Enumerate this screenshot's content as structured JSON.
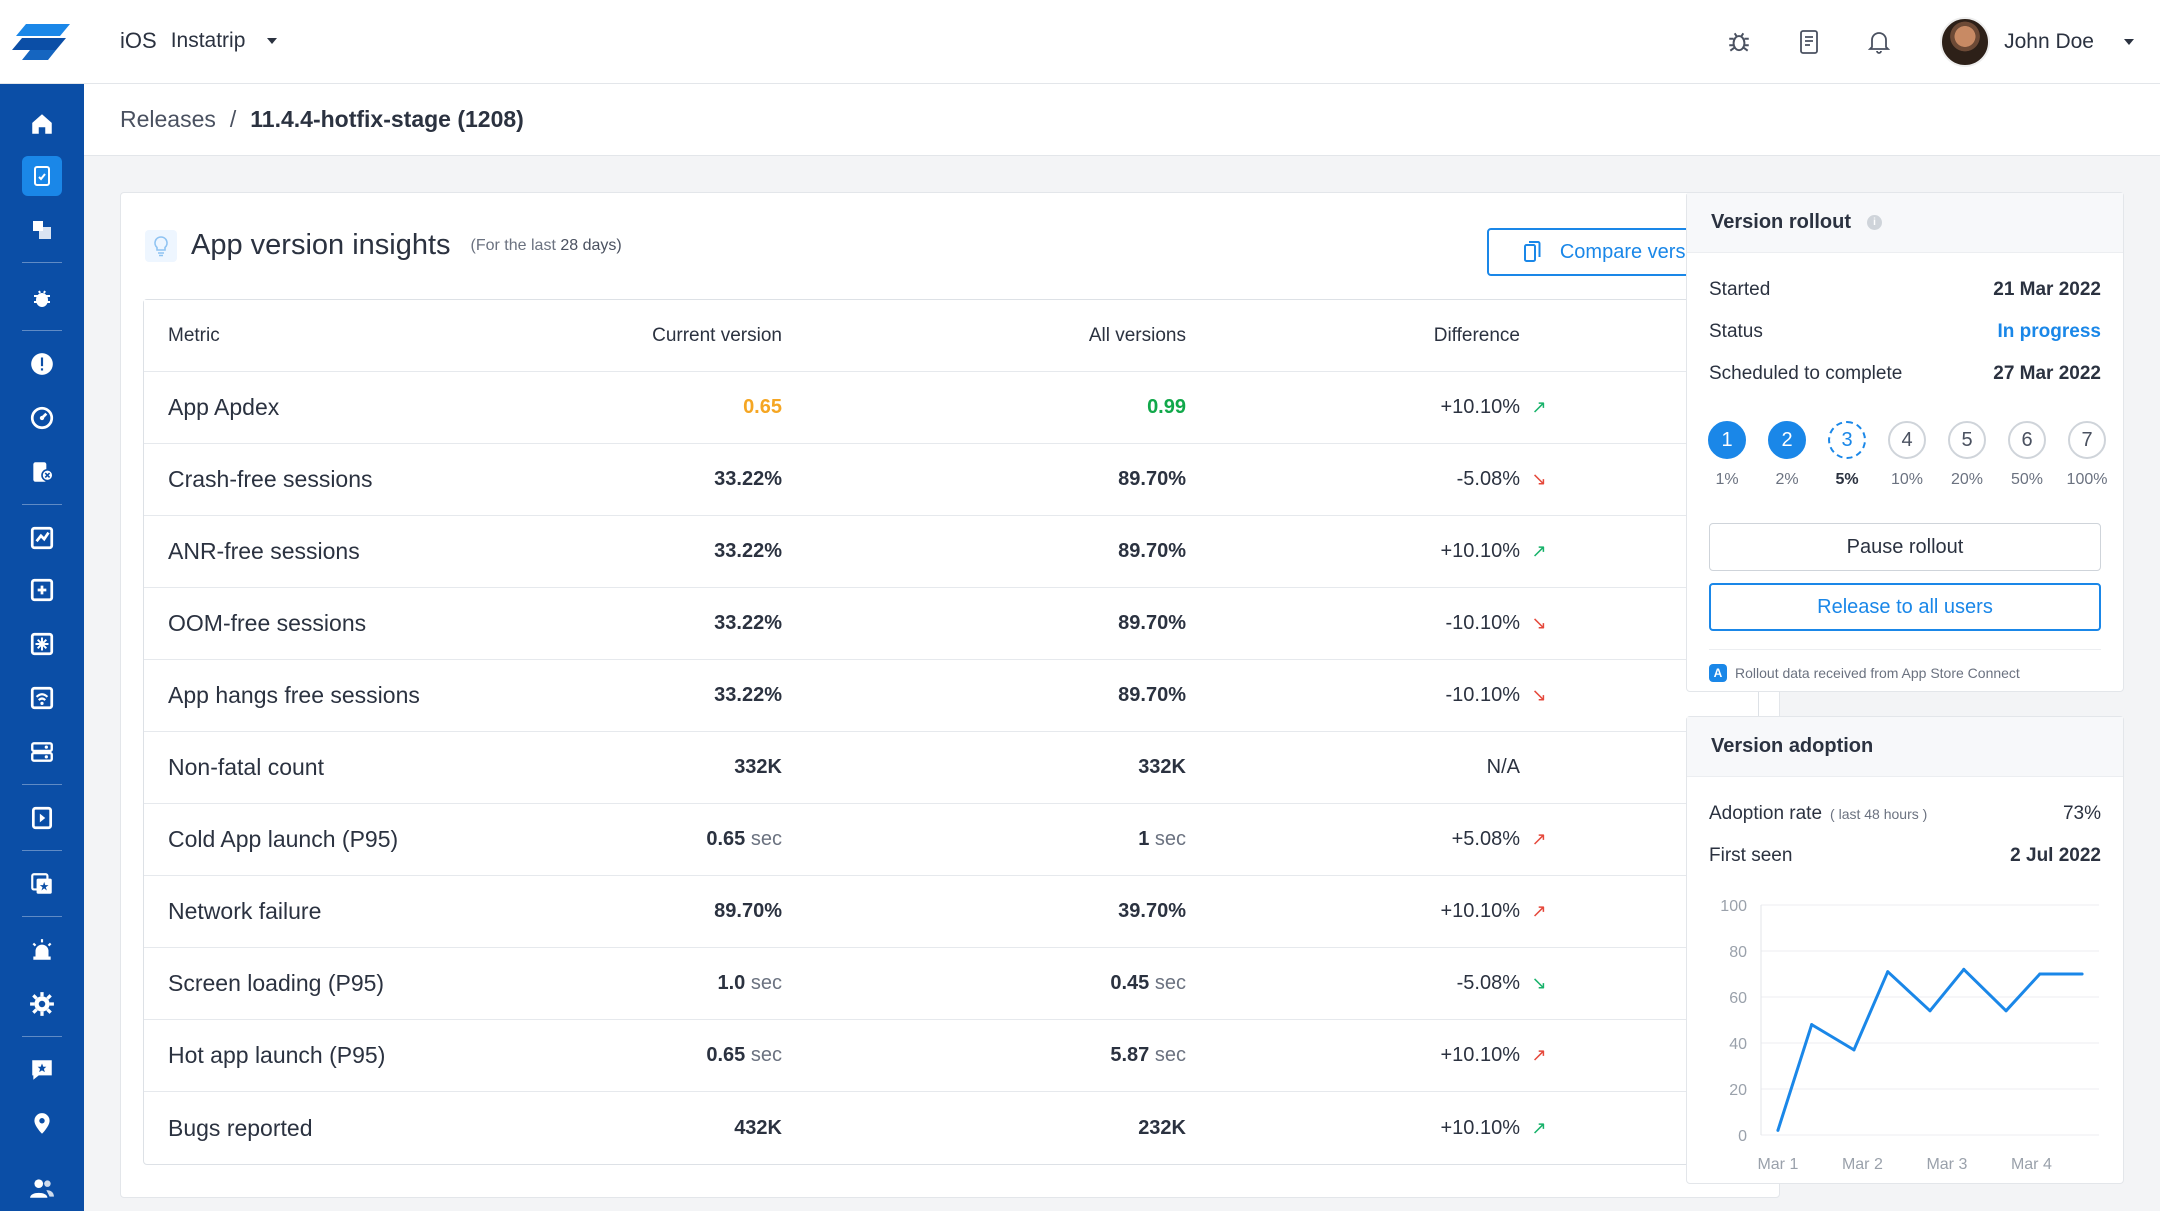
{
  "header": {
    "platform": "iOS",
    "app_name": "Instatrip",
    "user_name": "John Doe"
  },
  "breadcrumb": {
    "root": "Releases",
    "separator": "/",
    "current": "11.4.4-hotfix-stage (1208)"
  },
  "insights": {
    "title": "App version insights",
    "subtitle_prefix": "(For the last",
    "subtitle_value": "28 days)",
    "compare_label": "Compare versions",
    "columns": [
      "Metric",
      "Current version",
      "All versions",
      "Difference"
    ],
    "rows": [
      {
        "metric": "App Apdex",
        "current": "0.65",
        "current_unit": "",
        "all": "0.99",
        "all_unit": "",
        "diff": "+10.10%",
        "trend": "up-green"
      },
      {
        "metric": "Crash-free sessions",
        "current": "33.22%",
        "current_unit": "",
        "all": "89.70%",
        "all_unit": "",
        "diff": "-5.08%",
        "trend": "down-red"
      },
      {
        "metric": "ANR-free sessions",
        "current": "33.22%",
        "current_unit": "",
        "all": "89.70%",
        "all_unit": "",
        "diff": "+10.10%",
        "trend": "up-green"
      },
      {
        "metric": "OOM-free sessions",
        "current": "33.22%",
        "current_unit": "",
        "all": "89.70%",
        "all_unit": "",
        "diff": "-10.10%",
        "trend": "down-red"
      },
      {
        "metric": "App hangs free sessions",
        "current": "33.22%",
        "current_unit": "",
        "all": "89.70%",
        "all_unit": "",
        "diff": "-10.10%",
        "trend": "down-red"
      },
      {
        "metric": "Non-fatal count",
        "current": "332K",
        "current_unit": "",
        "all": "332K",
        "all_unit": "",
        "diff": "N/A",
        "trend": "none"
      },
      {
        "metric": "Cold App launch (P95)",
        "current": "0.65",
        "current_unit": "sec",
        "all": "1",
        "all_unit": "sec",
        "diff": "+5.08%",
        "trend": "up-red"
      },
      {
        "metric": "Network failure",
        "current": "89.70%",
        "current_unit": "",
        "all": "39.70%",
        "all_unit": "",
        "diff": "+10.10%",
        "trend": "up-red"
      },
      {
        "metric": "Screen loading (P95)",
        "current": "1.0",
        "current_unit": "sec",
        "all": "0.45",
        "all_unit": "sec",
        "diff": "-5.08%",
        "trend": "down-green"
      },
      {
        "metric": "Hot app launch (P95)",
        "current": "0.65",
        "current_unit": "sec",
        "all": "5.87",
        "all_unit": "sec",
        "diff": "+10.10%",
        "trend": "up-red"
      },
      {
        "metric": "Bugs reported",
        "current": "432K",
        "current_unit": "",
        "all": "232K",
        "all_unit": "",
        "diff": "+10.10%",
        "trend": "up-green"
      }
    ]
  },
  "rollout": {
    "title": "Version rollout",
    "started_label": "Started",
    "started_value": "21 Mar 2022",
    "status_label": "Status",
    "status_value": "In progress",
    "scheduled_label": "Scheduled to complete",
    "scheduled_value": "27 Mar 2022",
    "steps": [
      {
        "n": "1",
        "pct": "1%",
        "state": "done"
      },
      {
        "n": "2",
        "pct": "2%",
        "state": "done"
      },
      {
        "n": "3",
        "pct": "5%",
        "state": "current"
      },
      {
        "n": "4",
        "pct": "10%",
        "state": "pending"
      },
      {
        "n": "5",
        "pct": "20%",
        "state": "pending"
      },
      {
        "n": "6",
        "pct": "50%",
        "state": "pending"
      },
      {
        "n": "7",
        "pct": "100%",
        "state": "pending"
      }
    ],
    "pause_label": "Pause rollout",
    "release_label": "Release to all users",
    "footer": "Rollout data received from App Store Connect"
  },
  "adoption": {
    "title": "Version adoption",
    "rate_label": "Adoption rate",
    "rate_sub": "( last 48 hours )",
    "rate_value": "73%",
    "first_seen_label": "First seen",
    "first_seen_value": "2 Jul 2022"
  },
  "chart_data": {
    "type": "line",
    "title": "",
    "xlabel": "",
    "ylabel": "",
    "ylim": [
      0,
      100
    ],
    "y_ticks": [
      "0",
      "20",
      "40",
      "60",
      "80",
      "100"
    ],
    "x_ticks": [
      "Mar 1",
      "Mar 2",
      "Mar 3",
      "Mar 4"
    ],
    "x": [
      0,
      0.4,
      0.9,
      1.3,
      1.8,
      2.2,
      2.7,
      3.1,
      3.6
    ],
    "values": [
      2,
      48,
      37,
      71,
      54,
      72,
      54,
      70,
      70
    ],
    "grid": true,
    "color": "#1a87e8"
  },
  "colors": {
    "sidebar": "#0b4ea6",
    "accent": "#1a87e8",
    "good": "#11a84a",
    "warn": "#f5a623",
    "bad": "#e5483b"
  }
}
